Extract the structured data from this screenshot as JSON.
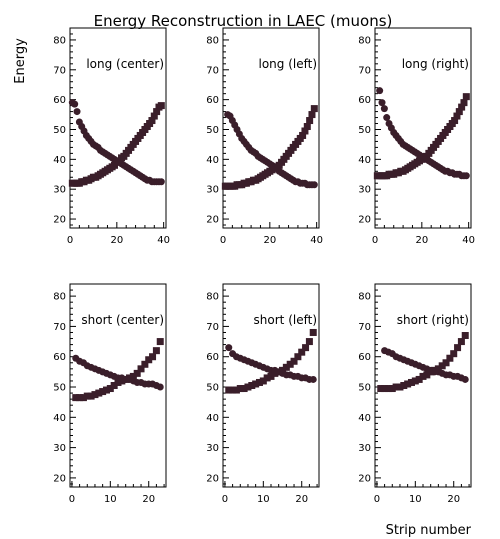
{
  "figure": {
    "title": "Energy Reconstruction in LAEC (muons)",
    "ylabel": "Energy",
    "xlabel": "Strip number"
  },
  "chart_data": [
    {
      "type": "scatter",
      "label": "long (center)",
      "xlim": [
        0,
        41
      ],
      "ylim": [
        17,
        84
      ],
      "xticks": [
        0,
        20,
        40
      ],
      "yticks": [
        20,
        30,
        40,
        50,
        60,
        70,
        80
      ],
      "series": [
        {
          "marker": "circle",
          "x": [
            1,
            2,
            3,
            4,
            5,
            6,
            7,
            8,
            9,
            10,
            11,
            12,
            13,
            14,
            15,
            16,
            17,
            18,
            19,
            20,
            21,
            22,
            23,
            24,
            25,
            26,
            27,
            28,
            29,
            30,
            31,
            32,
            33,
            34,
            35,
            36,
            37,
            38,
            39
          ],
          "y": [
            59,
            58.5,
            56,
            52.5,
            51,
            49.5,
            48,
            47,
            46,
            45,
            44.5,
            44,
            43,
            42.5,
            42,
            41.5,
            41,
            40.5,
            40,
            39.5,
            39,
            38.5,
            38,
            37.5,
            37,
            36.5,
            36,
            35.5,
            35,
            34.5,
            34,
            33.5,
            33,
            33,
            32.5,
            32.5,
            32.5,
            32.5,
            32.5
          ]
        },
        {
          "marker": "square",
          "x": [
            1,
            2,
            3,
            4,
            5,
            6,
            7,
            8,
            9,
            10,
            11,
            12,
            13,
            14,
            15,
            16,
            17,
            18,
            19,
            20,
            21,
            22,
            23,
            24,
            25,
            26,
            27,
            28,
            29,
            30,
            31,
            32,
            33,
            34,
            35,
            36,
            37,
            38,
            39
          ],
          "y": [
            32,
            32,
            32,
            32,
            32.5,
            32.5,
            33,
            33,
            33.5,
            34,
            34,
            34.5,
            35,
            35.5,
            36,
            36.5,
            37,
            37.5,
            38,
            39,
            39.5,
            40.5,
            41,
            42,
            43,
            44,
            45,
            46,
            47,
            48,
            49,
            50,
            51,
            52,
            53,
            54.5,
            56,
            57.5,
            58
          ]
        }
      ]
    },
    {
      "type": "scatter",
      "label": "long (left)",
      "xlim": [
        0,
        41
      ],
      "ylim": [
        17,
        84
      ],
      "xticks": [
        0,
        20,
        40
      ],
      "yticks": [
        20,
        30,
        40,
        50,
        60,
        70,
        80
      ],
      "series": [
        {
          "marker": "circle",
          "x": [
            2,
            3,
            4,
            5,
            6,
            7,
            8,
            9,
            10,
            11,
            12,
            13,
            14,
            15,
            16,
            17,
            18,
            19,
            20,
            21,
            22,
            23,
            24,
            25,
            26,
            27,
            28,
            29,
            30,
            31,
            32,
            33,
            34,
            35,
            36,
            37,
            38,
            39
          ],
          "y": [
            55,
            54.5,
            53,
            51.5,
            50,
            48.5,
            47,
            46,
            45,
            44,
            43,
            42.5,
            42,
            41,
            40.5,
            40,
            39.5,
            39,
            38.5,
            38,
            37.5,
            37,
            36,
            35.5,
            35,
            34.5,
            34,
            33.5,
            33,
            32.5,
            32.5,
            32,
            32,
            32,
            31.5,
            31.5,
            31.5,
            31.5
          ]
        },
        {
          "marker": "square",
          "x": [
            1,
            2,
            3,
            4,
            5,
            6,
            7,
            8,
            9,
            10,
            11,
            12,
            13,
            14,
            15,
            16,
            17,
            18,
            19,
            20,
            21,
            22,
            23,
            24,
            25,
            26,
            27,
            28,
            29,
            30,
            31,
            32,
            33,
            34,
            35,
            36,
            37,
            38,
            39
          ],
          "y": [
            31,
            31,
            31,
            31,
            31,
            31.5,
            31.5,
            31.5,
            32,
            32,
            32.5,
            32.5,
            33,
            33,
            33.5,
            34,
            34.5,
            35,
            35.5,
            36,
            36.5,
            37,
            37.5,
            38,
            39,
            40,
            41,
            42,
            43,
            44,
            45,
            46,
            47,
            48,
            49.5,
            51,
            53,
            55,
            57
          ]
        }
      ]
    },
    {
      "type": "scatter",
      "label": "long (right)",
      "xlim": [
        0,
        41
      ],
      "ylim": [
        17,
        84
      ],
      "xticks": [
        0,
        20,
        40
      ],
      "yticks": [
        20,
        30,
        40,
        50,
        60,
        70,
        80
      ],
      "series": [
        {
          "marker": "circle",
          "x": [
            2,
            3,
            4,
            5,
            6,
            7,
            8,
            9,
            10,
            11,
            12,
            13,
            14,
            15,
            16,
            17,
            18,
            19,
            20,
            21,
            22,
            23,
            24,
            25,
            26,
            27,
            28,
            29,
            30,
            31,
            32,
            33,
            34,
            35,
            36,
            37,
            38,
            39
          ],
          "y": [
            63,
            59,
            57,
            54,
            52,
            50.5,
            49,
            48,
            47,
            46,
            45,
            44.5,
            44,
            43.5,
            43,
            42.5,
            42,
            41.5,
            41,
            40.5,
            40,
            39.5,
            39,
            38.5,
            38,
            37.5,
            37,
            36.5,
            36,
            36,
            35.5,
            35.5,
            35,
            35,
            35,
            34.5,
            34.5,
            34.5
          ]
        },
        {
          "marker": "square",
          "x": [
            1,
            2,
            3,
            4,
            5,
            6,
            7,
            8,
            9,
            10,
            11,
            12,
            13,
            14,
            15,
            16,
            17,
            18,
            19,
            20,
            21,
            22,
            23,
            24,
            25,
            26,
            27,
            28,
            29,
            30,
            31,
            32,
            33,
            34,
            35,
            36,
            37,
            38,
            39
          ],
          "y": [
            34.5,
            34.5,
            34.5,
            34.5,
            34.5,
            35,
            35,
            35,
            35.5,
            35.5,
            36,
            36,
            36.5,
            37,
            37.5,
            38,
            38.5,
            39,
            39.5,
            40,
            40.5,
            41,
            42,
            43,
            44,
            45,
            46,
            47,
            48,
            49,
            50,
            51,
            52,
            53,
            54.5,
            56,
            57.5,
            59,
            61
          ]
        }
      ]
    },
    {
      "type": "scatter",
      "label": "short (center)",
      "xlim": [
        -0.5,
        24.5
      ],
      "ylim": [
        17,
        84
      ],
      "xticks": [
        0,
        10,
        20
      ],
      "yticks": [
        20,
        30,
        40,
        50,
        60,
        70,
        80
      ],
      "series": [
        {
          "marker": "circle",
          "x": [
            1,
            2,
            3,
            4,
            5,
            6,
            7,
            8,
            9,
            10,
            11,
            12,
            13,
            14,
            15,
            16,
            17,
            18,
            19,
            20,
            21,
            22,
            23
          ],
          "y": [
            59.5,
            58.5,
            58,
            57,
            56.5,
            56,
            55.5,
            55,
            54.5,
            54,
            53.5,
            53,
            53,
            52.5,
            52.5,
            52,
            51.5,
            51.5,
            51,
            51,
            51,
            50.5,
            50
          ]
        },
        {
          "marker": "square",
          "x": [
            1,
            2,
            3,
            4,
            5,
            6,
            7,
            8,
            9,
            10,
            11,
            12,
            13,
            14,
            15,
            16,
            17,
            18,
            19,
            20,
            21,
            22,
            23
          ],
          "y": [
            46.5,
            46.5,
            46.5,
            47,
            47,
            47.5,
            48,
            48.5,
            49,
            49.5,
            50.5,
            51.5,
            52,
            52.5,
            53,
            53.5,
            54.5,
            56,
            57.5,
            59,
            60,
            62,
            65
          ]
        }
      ]
    },
    {
      "type": "scatter",
      "label": "short (left)",
      "xlim": [
        -0.5,
        24.5
      ],
      "ylim": [
        17,
        84
      ],
      "xticks": [
        0,
        10,
        20
      ],
      "yticks": [
        20,
        30,
        40,
        50,
        60,
        70,
        80
      ],
      "series": [
        {
          "marker": "circle",
          "x": [
            1,
            2,
            3,
            4,
            5,
            6,
            7,
            8,
            9,
            10,
            11,
            12,
            13,
            14,
            15,
            16,
            17,
            18,
            19,
            20,
            21,
            22,
            23
          ],
          "y": [
            63,
            61,
            60,
            59.5,
            59,
            58.5,
            58,
            57.5,
            57,
            56.5,
            56,
            55.5,
            55.5,
            55,
            54.5,
            54,
            54,
            53.5,
            53.5,
            53,
            53,
            52.5,
            52.5
          ]
        },
        {
          "marker": "square",
          "x": [
            1,
            2,
            3,
            4,
            5,
            6,
            7,
            8,
            9,
            10,
            11,
            12,
            13,
            14,
            15,
            16,
            17,
            18,
            19,
            20,
            21,
            22,
            23
          ],
          "y": [
            49,
            49,
            49,
            49.5,
            49.5,
            50,
            50.5,
            51,
            51.5,
            52,
            53,
            53.5,
            54.5,
            55,
            55.5,
            56.5,
            57.5,
            58.5,
            60,
            61.5,
            63,
            65,
            68
          ]
        }
      ]
    },
    {
      "type": "scatter",
      "label": "short (right)",
      "xlim": [
        -0.5,
        24.5
      ],
      "ylim": [
        17,
        84
      ],
      "xticks": [
        0,
        10,
        20
      ],
      "yticks": [
        20,
        30,
        40,
        50,
        60,
        70,
        80
      ],
      "series": [
        {
          "marker": "circle",
          "x": [
            2,
            3,
            4,
            5,
            6,
            7,
            8,
            9,
            10,
            11,
            12,
            13,
            14,
            15,
            16,
            17,
            18,
            19,
            20,
            21,
            22,
            23
          ],
          "y": [
            62,
            61.5,
            61,
            60,
            59.5,
            59,
            58.5,
            58,
            57.5,
            57,
            56.5,
            56,
            55.5,
            55,
            55,
            54.5,
            54,
            54,
            53.5,
            53.5,
            53,
            52.5
          ]
        },
        {
          "marker": "square",
          "x": [
            1,
            2,
            3,
            4,
            5,
            6,
            7,
            8,
            9,
            10,
            11,
            12,
            13,
            14,
            15,
            16,
            17,
            18,
            19,
            20,
            21,
            22,
            23
          ],
          "y": [
            49.5,
            49.5,
            49.5,
            49.5,
            50,
            50,
            50.5,
            51,
            51.5,
            52,
            52.5,
            53.5,
            54,
            55,
            55.5,
            56,
            57,
            58,
            59.5,
            61,
            63,
            65,
            67
          ]
        }
      ]
    }
  ]
}
